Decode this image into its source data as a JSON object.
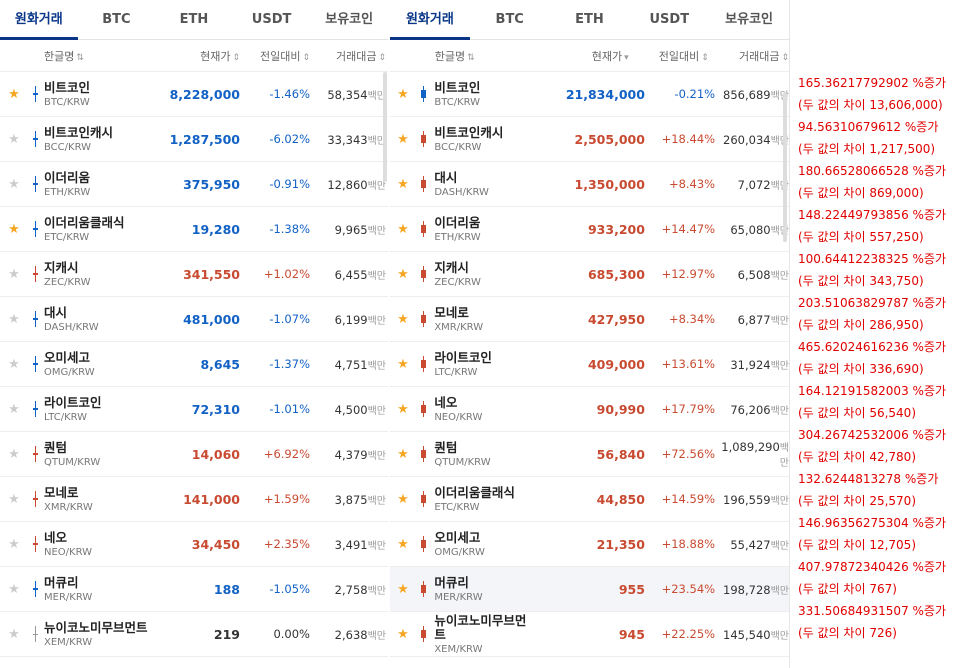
{
  "left": {
    "tabs": [
      "원화거래",
      "BTC",
      "ETH",
      "USDT",
      "보유코인"
    ],
    "headers": {
      "name": "한글명",
      "price": "현재가",
      "change": "전일대비",
      "volume": "거래대금"
    },
    "unit": "백만",
    "rows": [
      {
        "name": "비트코인",
        "code": "BTC/KRW",
        "price": "8,228,000",
        "change": "-1.46%",
        "volume": "58,354",
        "fav": true,
        "dir": "down"
      },
      {
        "name": "비트코인캐시",
        "code": "BCC/KRW",
        "price": "1,287,500",
        "change": "-6.02%",
        "volume": "33,343",
        "fav": false,
        "dir": "down"
      },
      {
        "name": "이더리움",
        "code": "ETH/KRW",
        "price": "375,950",
        "change": "-0.91%",
        "volume": "12,860",
        "fav": false,
        "dir": "down"
      },
      {
        "name": "이더리움클래식",
        "code": "ETC/KRW",
        "price": "19,280",
        "change": "-1.38%",
        "volume": "9,965",
        "fav": true,
        "dir": "down"
      },
      {
        "name": "지캐시",
        "code": "ZEC/KRW",
        "price": "341,550",
        "change": "+1.02%",
        "volume": "6,455",
        "fav": false,
        "dir": "up"
      },
      {
        "name": "대시",
        "code": "DASH/KRW",
        "price": "481,000",
        "change": "-1.07%",
        "volume": "6,199",
        "fav": false,
        "dir": "down"
      },
      {
        "name": "오미세고",
        "code": "OMG/KRW",
        "price": "8,645",
        "change": "-1.37%",
        "volume": "4,751",
        "fav": false,
        "dir": "down"
      },
      {
        "name": "라이트코인",
        "code": "LTC/KRW",
        "price": "72,310",
        "change": "-1.01%",
        "volume": "4,500",
        "fav": false,
        "dir": "down"
      },
      {
        "name": "퀀텀",
        "code": "QTUM/KRW",
        "price": "14,060",
        "change": "+6.92%",
        "volume": "4,379",
        "fav": false,
        "dir": "up"
      },
      {
        "name": "모네로",
        "code": "XMR/KRW",
        "price": "141,000",
        "change": "+1.59%",
        "volume": "3,875",
        "fav": false,
        "dir": "up"
      },
      {
        "name": "네오",
        "code": "NEO/KRW",
        "price": "34,450",
        "change": "+2.35%",
        "volume": "3,491",
        "fav": false,
        "dir": "up"
      },
      {
        "name": "머큐리",
        "code": "MER/KRW",
        "price": "188",
        "change": "-1.05%",
        "volume": "2,758",
        "fav": false,
        "dir": "down"
      },
      {
        "name": "뉴이코노미무브먼트",
        "code": "XEM/KRW",
        "price": "219",
        "change": "0.00%",
        "volume": "2,638",
        "fav": false,
        "dir": "even"
      }
    ]
  },
  "right": {
    "tabs": [
      "원화거래",
      "BTC",
      "ETH",
      "USDT",
      "보유코인"
    ],
    "headers": {
      "name": "한글명",
      "price": "현재가",
      "change": "전일대비",
      "volume": "거래대금"
    },
    "unit": "백만",
    "rows": [
      {
        "name": "비트코인",
        "code": "BTC/KRW",
        "price": "21,834,000",
        "change": "-0.21%",
        "volume": "856,689",
        "fav": true,
        "dir": "down"
      },
      {
        "name": "비트코인캐시",
        "code": "BCC/KRW",
        "price": "2,505,000",
        "change": "+18.44%",
        "volume": "260,034",
        "fav": true,
        "dir": "up"
      },
      {
        "name": "대시",
        "code": "DASH/KRW",
        "price": "1,350,000",
        "change": "+8.43%",
        "volume": "7,072",
        "fav": true,
        "dir": "up"
      },
      {
        "name": "이더리움",
        "code": "ETH/KRW",
        "price": "933,200",
        "change": "+14.47%",
        "volume": "65,080",
        "fav": true,
        "dir": "up"
      },
      {
        "name": "지캐시",
        "code": "ZEC/KRW",
        "price": "685,300",
        "change": "+12.97%",
        "volume": "6,508",
        "fav": true,
        "dir": "up"
      },
      {
        "name": "모네로",
        "code": "XMR/KRW",
        "price": "427,950",
        "change": "+8.34%",
        "volume": "6,877",
        "fav": true,
        "dir": "up"
      },
      {
        "name": "라이트코인",
        "code": "LTC/KRW",
        "price": "409,000",
        "change": "+13.61%",
        "volume": "31,924",
        "fav": true,
        "dir": "up"
      },
      {
        "name": "네오",
        "code": "NEO/KRW",
        "price": "90,990",
        "change": "+17.79%",
        "volume": "76,206",
        "fav": true,
        "dir": "up"
      },
      {
        "name": "퀀텀",
        "code": "QTUM/KRW",
        "price": "56,840",
        "change": "+72.56%",
        "volume": "1,089,290",
        "fav": true,
        "dir": "up"
      },
      {
        "name": "이더리움클래식",
        "code": "ETC/KRW",
        "price": "44,850",
        "change": "+14.59%",
        "volume": "196,559",
        "fav": true,
        "dir": "up"
      },
      {
        "name": "오미세고",
        "code": "OMG/KRW",
        "price": "21,350",
        "change": "+18.88%",
        "volume": "55,427",
        "fav": true,
        "dir": "up"
      },
      {
        "name": "머큐리",
        "code": "MER/KRW",
        "price": "955",
        "change": "+23.54%",
        "volume": "198,728",
        "fav": true,
        "dir": "up",
        "highlight": true
      },
      {
        "name": "뉴이코노미무브먼트",
        "code": "XEM/KRW",
        "price": "945",
        "change": "+22.25%",
        "volume": "145,540",
        "fav": true,
        "dir": "up"
      }
    ]
  },
  "annotations": [
    {
      "pct": "165.36217792902 %증가",
      "diff": "(두 값의 차이 13,606,000)"
    },
    {
      "pct": "94.56310679612 %증가",
      "diff": "(두 값의 차이 1,217,500)"
    },
    {
      "pct": "180.66528066528 %증가",
      "diff": "(두 값의 차이 869,000)"
    },
    {
      "pct": "148.22449793856 %증가",
      "diff": "(두 값의 차이 557,250)"
    },
    {
      "pct": "100.64412238325 %증가",
      "diff": "(두 값의 차이 343,750)"
    },
    {
      "pct": "203.51063829787 %증가",
      "diff": "(두 값의 차이 286,950)"
    },
    {
      "pct": "465.62024616236 %증가",
      "diff": "(두 값의 차이 336,690)"
    },
    {
      "pct": "164.12191582003 %증가",
      "diff": "(두 값의 차이 56,540)"
    },
    {
      "pct": "304.26742532006 %증가",
      "diff": "(두 값의 차이 42,780)"
    },
    {
      "pct": "132.6244813278 %증가",
      "diff": "(두 값의 차이 25,570)"
    },
    {
      "pct": "146.96356275304 %증가",
      "diff": "(두 값의 차이 12,705)"
    },
    {
      "pct": "407.97872340426 %증가",
      "diff": "(두 값의 차이 767)"
    },
    {
      "pct": "331.50684931507 %증가",
      "diff": "(두 값의 차이 726)"
    }
  ],
  "colors": {
    "up": "#c84a31",
    "down": "#1261c4",
    "accent": "#093687",
    "star": "#f5a623",
    "annotation": "#e00000"
  }
}
